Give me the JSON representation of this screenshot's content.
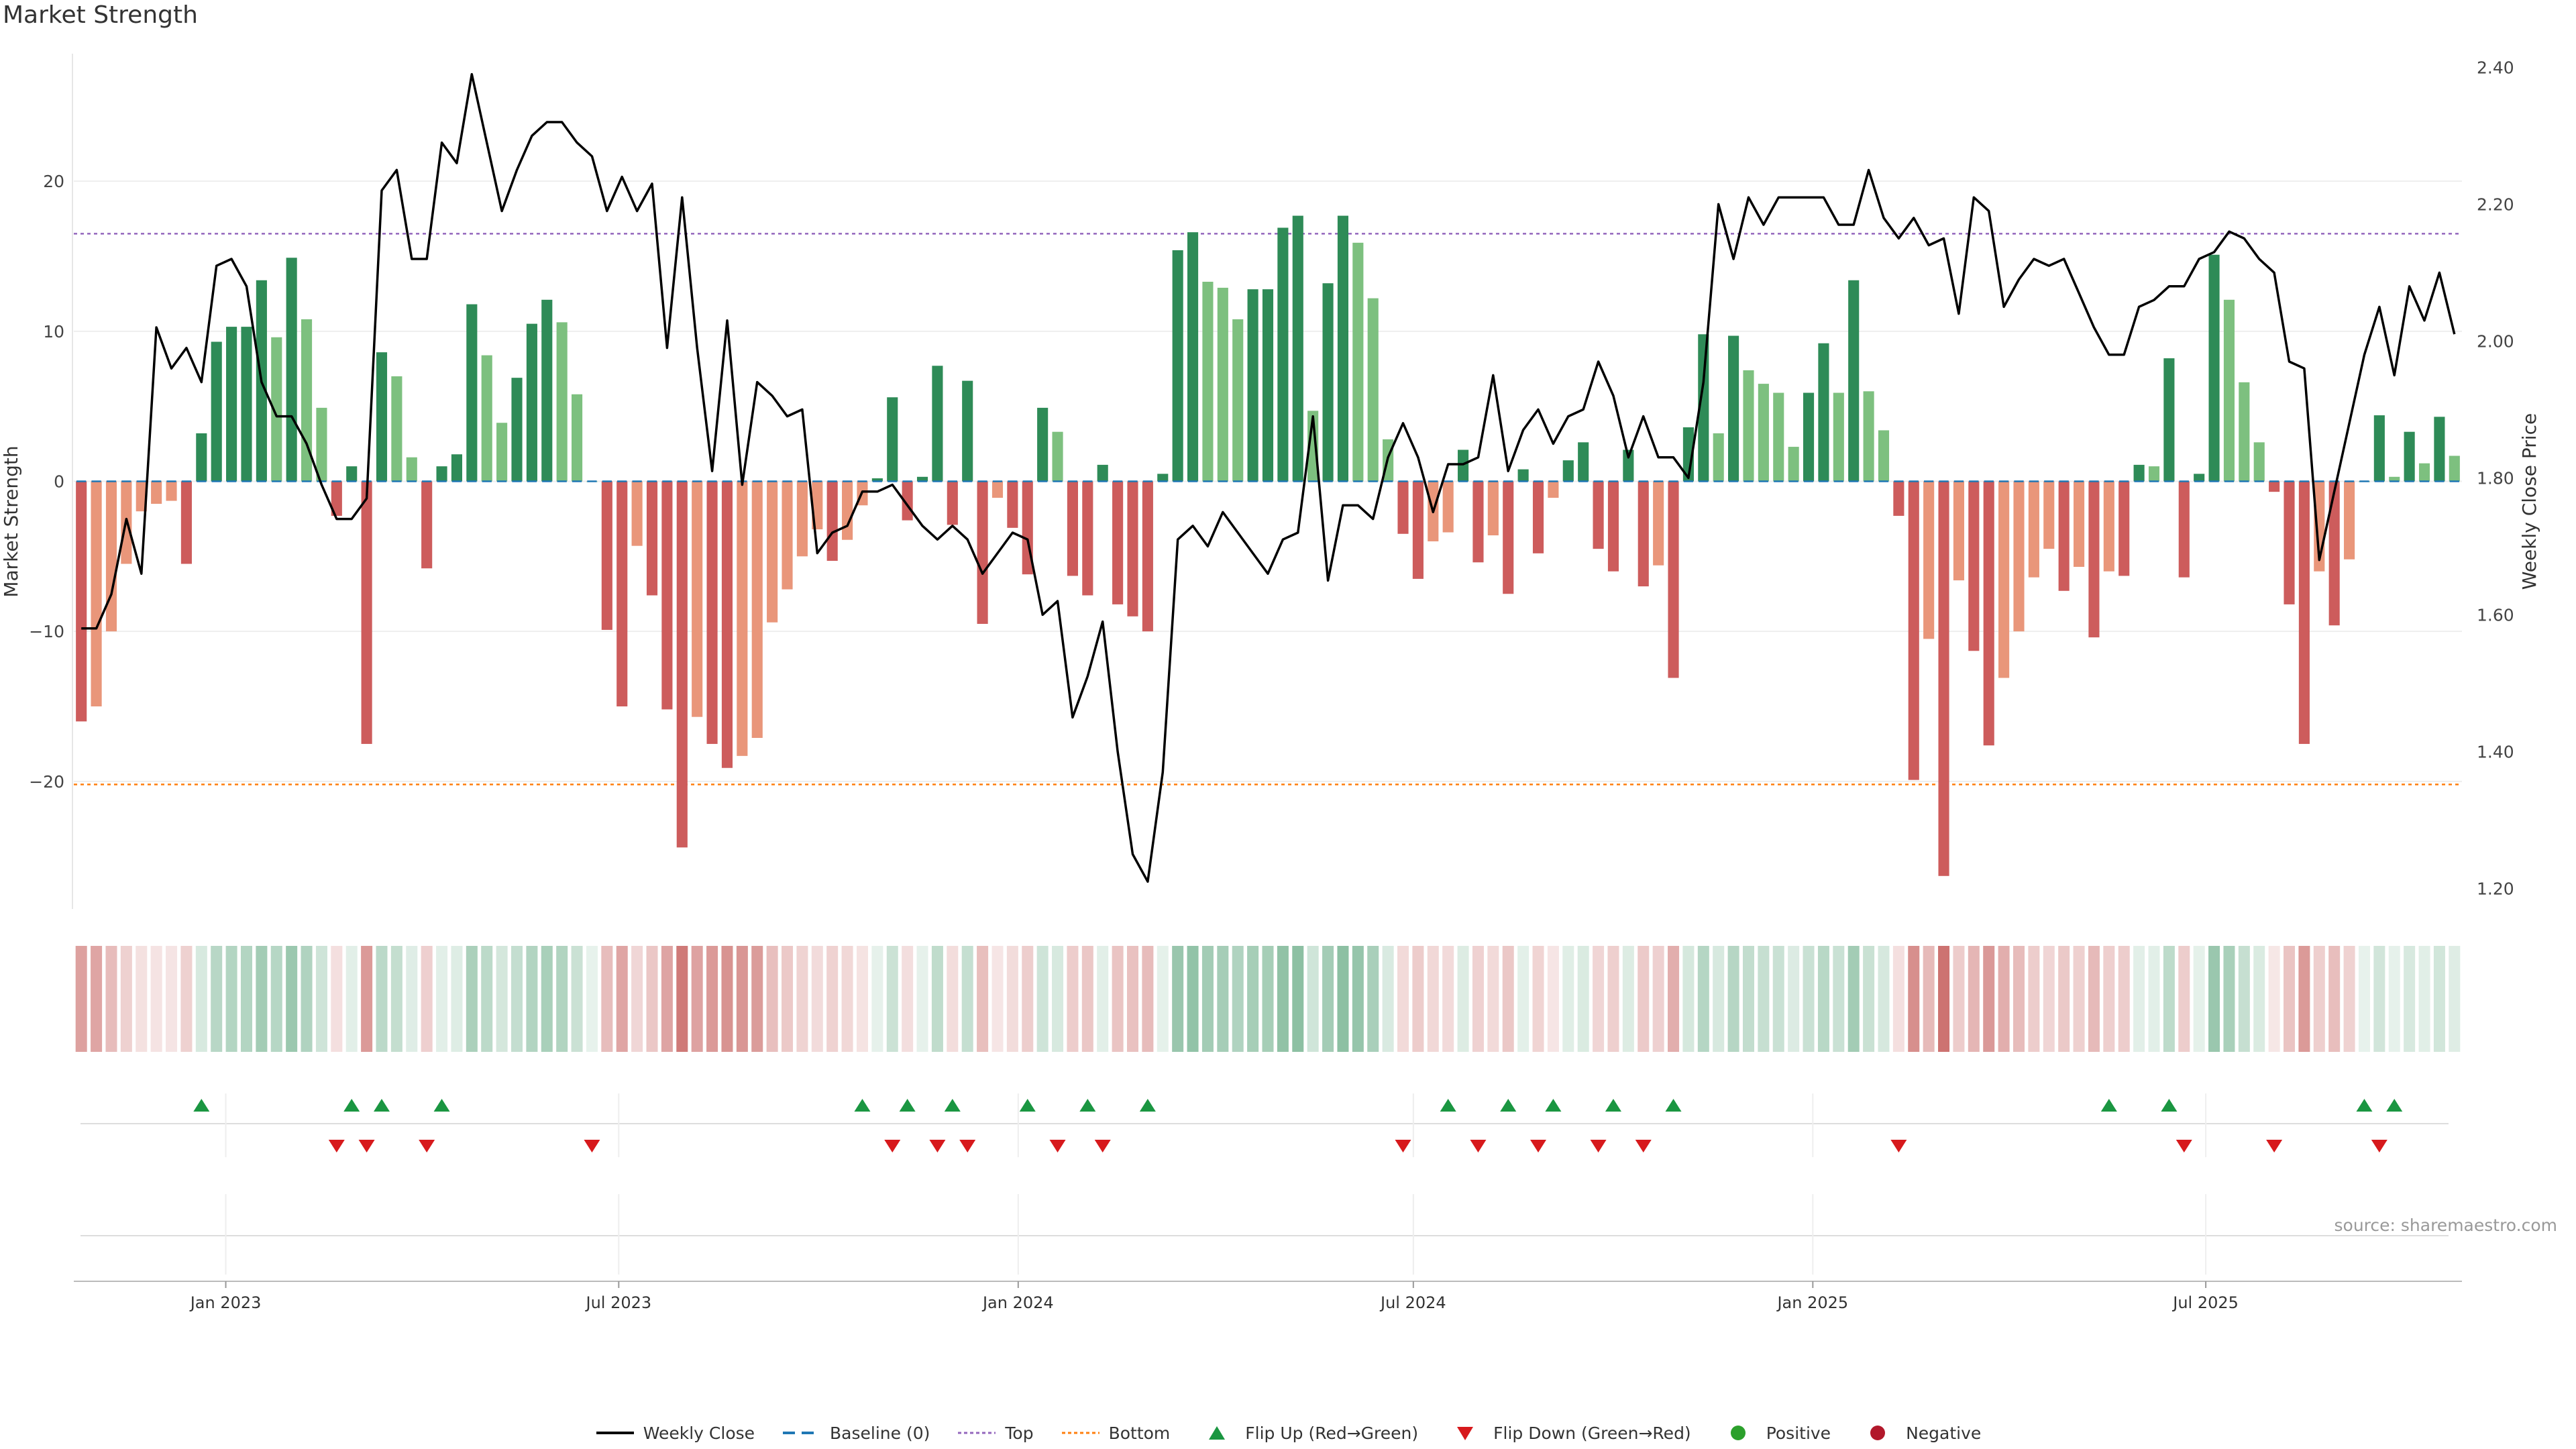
{
  "title": "Market Strength",
  "source": "source: sharemaestro.com",
  "colors": {
    "strong_pos": "#2e8b57",
    "weak_pos": "#7dc07f",
    "strong_neg": "#cd5c5c",
    "weak_neg": "#e9967a",
    "price_line": "#000000",
    "baseline": "#1f77b4",
    "top": "#9467bd",
    "bottom": "#ff7f0e",
    "flip_up": "#1a9641",
    "flip_down": "#d7191c",
    "positive": "#2ca02c",
    "negative": "#b2182b"
  },
  "legend": [
    {
      "label": "Weekly Close",
      "kind": "line",
      "color": "#000000"
    },
    {
      "label": "Baseline (0)",
      "kind": "dash",
      "color": "#1f77b4"
    },
    {
      "label": "Top",
      "kind": "dot",
      "color": "#9467bd"
    },
    {
      "label": "Bottom",
      "kind": "dot",
      "color": "#ff7f0e"
    },
    {
      "label": "Flip Up (Red→Green)",
      "kind": "tri-up",
      "color": "#1a9641"
    },
    {
      "label": "Flip Down (Green→Red)",
      "kind": "tri-down",
      "color": "#d7191c"
    },
    {
      "label": "Positive",
      "kind": "circle",
      "color": "#2ca02c"
    },
    {
      "label": "Negative",
      "kind": "circle",
      "color": "#b2182b"
    }
  ],
  "chart_data": {
    "type": "bar",
    "title": "Market Strength",
    "ylabel": "Market Strength",
    "y2label": "Weekly Close Price",
    "ylim": [
      -28.5,
      28.5
    ],
    "y2lim": [
      1.17,
      2.42
    ],
    "yticks": [
      -20,
      -10,
      0,
      10,
      20
    ],
    "y2ticks": [
      "1.20",
      "1.40",
      "1.60",
      "1.80",
      "2.00",
      "2.20",
      "2.40"
    ],
    "x_start": "2022-10-23",
    "x_end": "2025-10-27",
    "xtick_labels": [
      {
        "date": "2023-01-01",
        "label": "Jan 2023"
      },
      {
        "date": "2023-07-01",
        "label": "Jul 2023"
      },
      {
        "date": "2024-01-01",
        "label": "Jan 2024"
      },
      {
        "date": "2024-07-01",
        "label": "Jul 2024"
      },
      {
        "date": "2025-01-01",
        "label": "Jan 2025"
      },
      {
        "date": "2025-07-01",
        "label": "Jul 2025"
      }
    ],
    "top_threshold": 16.5,
    "bottom_threshold": -20.2,
    "market_strength": [
      -16,
      -15,
      -10,
      -5.5,
      -2,
      -1.5,
      -1.3,
      -5.5,
      3.2,
      9.3,
      10.3,
      10.3,
      13.4,
      9.6,
      14.9,
      10.8,
      4.9,
      -2.3,
      1,
      -17.5,
      8.6,
      7,
      1.6,
      -5.8,
      1,
      1.8,
      11.8,
      8.4,
      3.9,
      6.9,
      10.5,
      12.1,
      10.6,
      5.8,
      0,
      -9.9,
      -15,
      -4.3,
      -7.6,
      -15.2,
      -24.4,
      -15.7,
      -17.5,
      -19.1,
      -18.3,
      -17.1,
      -9.4,
      -7.2,
      -5,
      -3.2,
      -5.3,
      -3.9,
      -1.6,
      0.2,
      5.6,
      -2.6,
      0.3,
      7.7,
      -2.9,
      6.7,
      -9.5,
      -1.1,
      -3.1,
      -6.2,
      4.9,
      3.3,
      -6.3,
      -7.6,
      1.1,
      -8.2,
      -9,
      -10,
      0.5,
      15.4,
      16.6,
      13.3,
      12.9,
      10.8,
      12.8,
      12.8,
      16.9,
      17.7,
      4.7,
      13.2,
      17.7,
      15.9,
      12.2,
      2.8,
      -3.5,
      -6.5,
      -4,
      -3.4,
      2.1,
      -5.4,
      -3.6,
      -7.5,
      0.8,
      -4.8,
      -1.1,
      1.4,
      2.6,
      -4.5,
      -6,
      2.1,
      -7,
      -5.6,
      -13.1,
      3.6,
      9.8,
      3.2,
      9.7,
      7.4,
      6.5,
      5.9,
      2.3,
      5.9,
      9.2,
      5.9,
      13.4,
      6,
      3.4,
      -2.3,
      -19.9,
      -10.5,
      -26.3,
      -6.6,
      -11.3,
      -17.6,
      -13.1,
      -10,
      -6.4,
      -4.5,
      -7.3,
      -5.7,
      -10.4,
      -6,
      -6.3,
      1.1,
      1,
      8.2,
      -6.4,
      0.5,
      15.1,
      12.1,
      6.6,
      2.6,
      -0.7,
      -8.2,
      -17.5,
      -6,
      -9.6,
      -5.2,
      0,
      4.4,
      0.3,
      3.3,
      1.2,
      4.3,
      1.7
    ],
    "weekly_close": [
      1.58,
      1.58,
      1.63,
      1.74,
      1.66,
      2.02,
      1.96,
      1.99,
      1.94,
      2.11,
      2.12,
      2.08,
      1.94,
      1.89,
      1.89,
      1.85,
      1.79,
      1.74,
      1.74,
      1.77,
      2.22,
      2.25,
      2.12,
      2.12,
      2.29,
      2.26,
      2.39,
      2.29,
      2.19,
      2.25,
      2.3,
      2.32,
      2.32,
      2.29,
      2.27,
      2.19,
      2.24,
      2.19,
      2.23,
      1.99,
      2.21,
      1.99,
      1.81,
      2.03,
      1.79,
      1.94,
      1.92,
      1.89,
      1.9,
      1.69,
      1.72,
      1.73,
      1.78,
      1.78,
      1.79,
      1.76,
      1.73,
      1.71,
      1.73,
      1.71,
      1.66,
      1.69,
      1.72,
      1.71,
      1.6,
      1.62,
      1.45,
      1.51,
      1.59,
      1.4,
      1.25,
      1.21,
      1.37,
      1.71,
      1.73,
      1.7,
      1.75,
      1.72,
      1.69,
      1.66,
      1.71,
      1.72,
      1.89,
      1.65,
      1.76,
      1.76,
      1.74,
      1.83,
      1.88,
      1.83,
      1.75,
      1.82,
      1.82,
      1.83,
      1.95,
      1.81,
      1.87,
      1.9,
      1.85,
      1.89,
      1.9,
      1.97,
      1.92,
      1.83,
      1.89,
      1.83,
      1.83,
      1.8,
      1.94,
      2.2,
      2.12,
      2.21,
      2.17,
      2.21,
      2.21,
      2.21,
      2.21,
      2.17,
      2.17,
      2.25,
      2.18,
      2.15,
      2.18,
      2.14,
      2.15,
      2.04,
      2.21,
      2.19,
      2.05,
      2.09,
      2.12,
      2.11,
      2.12,
      2.07,
      2.02,
      1.98,
      1.98,
      2.05,
      2.06,
      2.08,
      2.08,
      2.12,
      2.13,
      2.16,
      2.15,
      2.12,
      2.1,
      1.97,
      1.96,
      1.68,
      1.78,
      1.88,
      1.98,
      2.05,
      1.95,
      2.08,
      2.03,
      2.1,
      2.01
    ],
    "flip_up_weeks": [
      8,
      18,
      20,
      24,
      52,
      55,
      58,
      63,
      67,
      71,
      91,
      95,
      98,
      102,
      106,
      135,
      139,
      152,
      154
    ],
    "flip_down_weeks": [
      17,
      19,
      23,
      34,
      54,
      57,
      59,
      65,
      68,
      88,
      93,
      97,
      101,
      104,
      121,
      140,
      146,
      153
    ]
  }
}
